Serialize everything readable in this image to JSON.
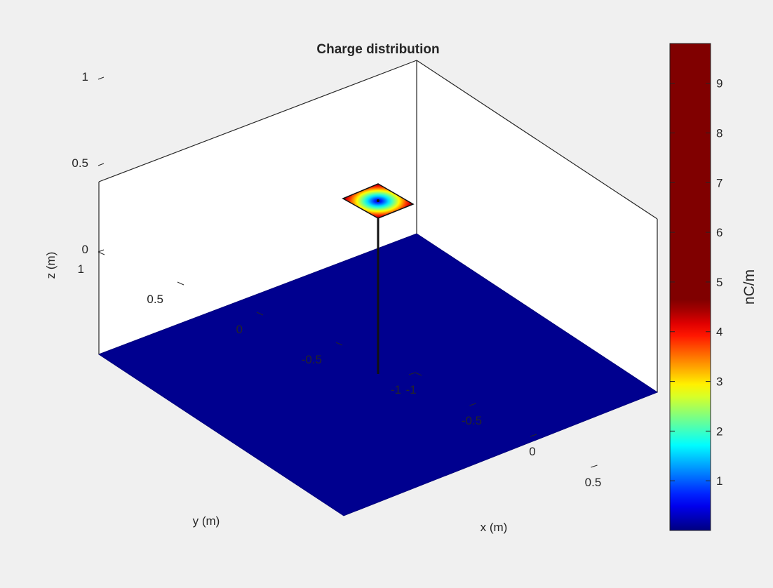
{
  "chart_data": {
    "type": "surface3d",
    "title": "Charge distribution",
    "xlabel": "x (m)",
    "ylabel": "y (m)",
    "zlabel": "z (m)",
    "xlim": [
      -1,
      1
    ],
    "ylim": [
      -1,
      1
    ],
    "zlim": [
      0,
      1
    ],
    "x_ticks": [
      {
        "value": -1,
        "label": "-1"
      },
      {
        "value": -0.5,
        "label": "-0.5"
      },
      {
        "value": 0,
        "label": "0"
      },
      {
        "value": 0.5,
        "label": "0.5"
      }
    ],
    "y_ticks": [
      {
        "value": -1,
        "label": "-1"
      },
      {
        "value": -0.5,
        "label": "-0.5"
      },
      {
        "value": 0,
        "label": "0"
      },
      {
        "value": 0.5,
        "label": "0.5"
      },
      {
        "value": 1,
        "label": "1"
      }
    ],
    "z_ticks": [
      {
        "value": 0,
        "label": "0"
      },
      {
        "value": 0.5,
        "label": "0.5"
      },
      {
        "value": 1,
        "label": "1"
      }
    ],
    "colorbar": {
      "label": "nC/m",
      "colormap": "jet",
      "range": [
        0,
        9.8
      ],
      "ticks": [
        {
          "value": 1,
          "label": "1"
        },
        {
          "value": 2,
          "label": "2"
        },
        {
          "value": 3,
          "label": "3"
        },
        {
          "value": 4,
          "label": "4"
        },
        {
          "value": 5,
          "label": "5"
        },
        {
          "value": 6,
          "label": "6"
        },
        {
          "value": 7,
          "label": "7"
        },
        {
          "value": 8,
          "label": "8"
        },
        {
          "value": 9,
          "label": "9"
        }
      ]
    },
    "ground_plane": {
      "x": [
        -1,
        1
      ],
      "y": [
        -1,
        1
      ],
      "z": 0,
      "charge": 0.05,
      "color": "#00008f"
    },
    "feed_wire": {
      "x": 0,
      "y": 0,
      "z": [
        0,
        0.8
      ]
    },
    "top_patch": {
      "x": [
        -0.2,
        0.2
      ],
      "y": [
        -0.2,
        0.2
      ],
      "z": 0.8,
      "center_charge": 0.3,
      "edge_charge": 4.6
    },
    "grid": false
  }
}
